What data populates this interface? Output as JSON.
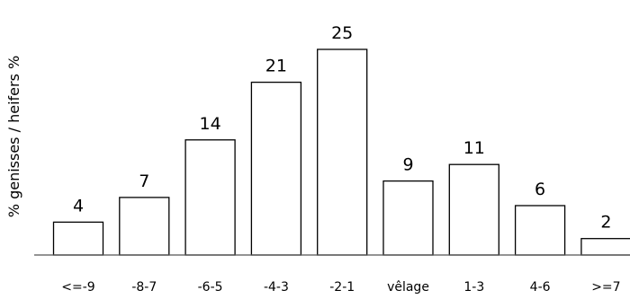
{
  "chart_data": {
    "type": "bar",
    "ylabel": "% genisses / heifers %",
    "xlabel": "",
    "categories": [
      "<=-9",
      "-8-7",
      "-6-5",
      "-4-3",
      "-2-1",
      "vêlage",
      "1-3",
      "4-6",
      ">=7"
    ],
    "values": [
      4,
      7,
      14,
      21,
      25,
      9,
      11,
      6,
      2
    ],
    "data_labels": [
      "4",
      "7",
      "14",
      "21",
      "25",
      "9",
      "11",
      "6",
      "2"
    ],
    "ylim": [
      0,
      25
    ],
    "grid": false,
    "legend": "none",
    "colors": {
      "bar_fill": "#ffffff",
      "bar_stroke": "#000000",
      "axis": "#555555"
    }
  }
}
